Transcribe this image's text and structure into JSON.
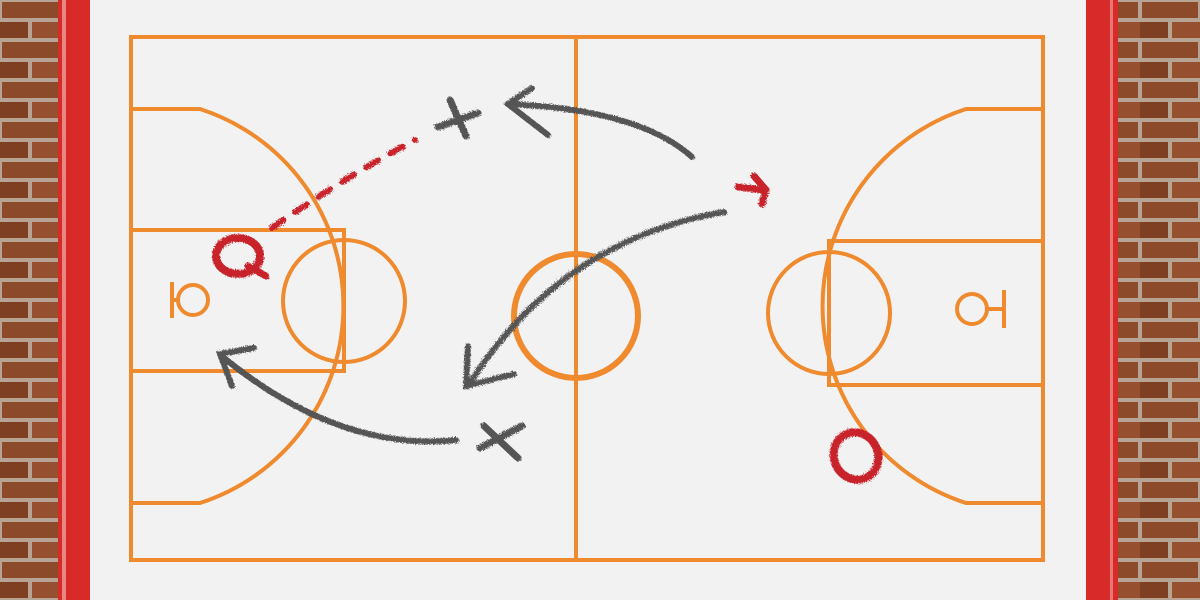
{
  "scene": {
    "subject": "basketball-play-diagram-on-whiteboard",
    "colors": {
      "brick": "#8d4a2b",
      "mortar": "#b8a596",
      "frame": "#d92a2a",
      "board": "#f2f2f2",
      "court_lines": "#ef8a2e",
      "chalk_grey": "#555555",
      "chalk_red": "#c8222b"
    },
    "symbols": [
      {
        "kind": "x",
        "color": "chalk_grey"
      },
      {
        "kind": "x",
        "color": "chalk_grey"
      },
      {
        "kind": "o",
        "color": "chalk_red"
      },
      {
        "kind": "o",
        "color": "chalk_red"
      }
    ]
  }
}
